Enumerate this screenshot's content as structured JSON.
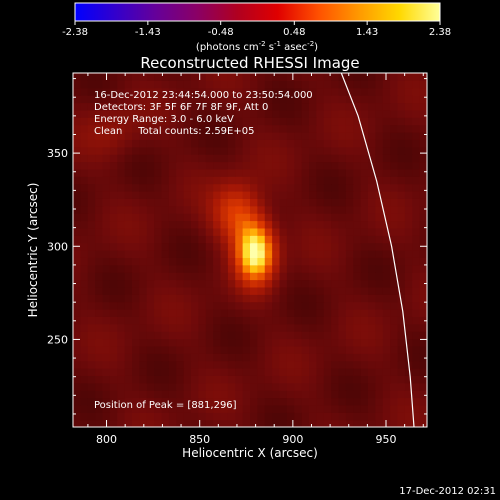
{
  "colorbar": {
    "tick_labels": [
      "-2.38",
      "-1.43",
      "-0.48",
      "0.48",
      "1.43",
      "2.38"
    ],
    "unit_main": "(photons cm",
    "unit_exp1": "-2",
    "unit_mid": " s",
    "unit_exp2": "-1",
    "unit_end": " asec",
    "unit_exp3": "-2",
    "unit_close": ")",
    "range": [
      -2.38,
      2.38
    ],
    "colors": [
      "#0000ff",
      "#3300cc",
      "#660099",
      "#8a0066",
      "#b00020",
      "#e00000",
      "#ff5000",
      "#ff9900",
      "#ffd800",
      "#ffff9a"
    ]
  },
  "chart_data": {
    "type": "heatmap",
    "title": "Reconstructed RHESSI Image",
    "xlabel": "Heliocentric X (arcsec)",
    "ylabel": "Heliocentric Y (arcsec)",
    "xlim": [
      782,
      972
    ],
    "ylim": [
      203,
      393
    ],
    "x_ticks": [
      800,
      850,
      900,
      950
    ],
    "y_ticks": [
      250,
      300,
      350
    ],
    "annotations": [
      "16-Dec-2012 23:44:54.000 to 23:50:54.000",
      "Detectors: 3F 5F 6F 7F 8F 9F, Att 0",
      "Energy Range: 3.0 - 6.0 keV",
      "Clean     Total counts: 2.59E+05"
    ],
    "peak_label": "Position of Peak = [881,296]",
    "peak": [
      881,
      296
    ],
    "limb_curve": [
      [
        926,
        393
      ],
      [
        935,
        370
      ],
      [
        945,
        335
      ],
      [
        953,
        300
      ],
      [
        959,
        265
      ],
      [
        963,
        230
      ],
      [
        965,
        203
      ]
    ],
    "sources": [
      {
        "x": 880,
        "y": 297,
        "sx": 7,
        "sy": 11,
        "amp": 1.0
      },
      {
        "x": 870,
        "y": 318,
        "sx": 9,
        "sy": 11,
        "amp": 0.45
      },
      {
        "x": 803,
        "y": 362,
        "sx": 10,
        "sy": 10,
        "amp": 0.12
      }
    ]
  },
  "footer": {
    "timestamp": "17-Dec-2012 02:31"
  }
}
